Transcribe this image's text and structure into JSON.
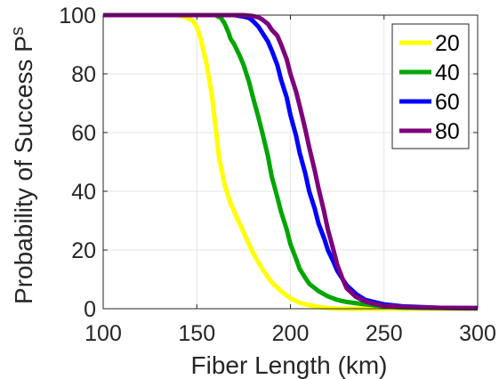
{
  "chart_data": {
    "type": "line",
    "title": "",
    "xlabel": "Fiber Length (km)",
    "ylabel_main": "Probability of Success P",
    "ylabel_subscript": "s",
    "xlim": [
      100,
      300
    ],
    "ylim": [
      0,
      100
    ],
    "x_ticks": [
      100,
      150,
      200,
      250,
      300
    ],
    "y_ticks": [
      0,
      20,
      40,
      60,
      80,
      100
    ],
    "grid": true,
    "legend_position": "top-right",
    "series": [
      {
        "name": "20",
        "color": "#ffff00",
        "x": [
          100,
          140,
          145,
          148,
          150,
          152,
          155,
          158,
          160,
          162,
          165,
          168,
          170,
          175,
          180,
          185,
          190,
          195,
          200,
          205,
          210,
          215,
          220,
          225,
          230,
          240,
          250,
          260,
          270,
          280,
          290,
          300
        ],
        "y": [
          100,
          100,
          99,
          98,
          96,
          92,
          84,
          73,
          62,
          51,
          42,
          36,
          33,
          26,
          19,
          13.5,
          9,
          6,
          3.5,
          2,
          1.2,
          0.6,
          0.2,
          0.05,
          0,
          0,
          0,
          0,
          0,
          0,
          0,
          0
        ]
      },
      {
        "name": "40",
        "color": "#00a600",
        "x": [
          100,
          160,
          163,
          165,
          167,
          168,
          170,
          173,
          175,
          178,
          180,
          183,
          185,
          188,
          190,
          193,
          195,
          198,
          200,
          203,
          205,
          208,
          210,
          215,
          220,
          225,
          230,
          240,
          250,
          260,
          280,
          300
        ],
        "y": [
          100,
          100,
          99,
          97,
          94,
          92,
          90,
          86,
          83,
          77,
          72,
          65,
          60,
          52,
          45,
          38,
          33,
          27,
          22,
          17,
          13.5,
          10.5,
          8.5,
          6,
          4.2,
          3,
          2.3,
          1.5,
          0.8,
          0.4,
          0.2,
          0.1
        ]
      },
      {
        "name": "60",
        "color": "#0000ff",
        "x": [
          100,
          170,
          175,
          178,
          180,
          183,
          185,
          188,
          190,
          193,
          195,
          198,
          200,
          203,
          205,
          208,
          210,
          213,
          215,
          218,
          220,
          223,
          225,
          228,
          230,
          235,
          240,
          245,
          250,
          260,
          280,
          300
        ],
        "y": [
          100,
          100,
          99.5,
          99,
          98,
          96,
          94,
          91,
          88,
          83,
          78,
          72,
          66,
          59,
          53,
          46,
          40,
          34,
          29,
          24,
          20,
          16,
          13,
          10,
          8,
          5,
          3,
          2.2,
          1.5,
          0.8,
          0.3,
          0.2
        ]
      },
      {
        "name": "80",
        "color": "#7d007d",
        "x": [
          100,
          175,
          180,
          183,
          185,
          188,
          190,
          193,
          195,
          198,
          200,
          203,
          205,
          208,
          210,
          213,
          215,
          218,
          220,
          223,
          225,
          228,
          230,
          235,
          240,
          245,
          250,
          260,
          270,
          280,
          290,
          300
        ],
        "y": [
          100,
          100,
          99.7,
          99.2,
          98.5,
          97,
          95,
          93,
          90,
          85,
          80,
          74,
          69,
          61,
          55,
          47,
          41,
          33,
          27,
          20,
          15,
          10,
          7,
          4,
          2.5,
          1.6,
          1,
          0.6,
          0.4,
          0.3,
          0.25,
          0.2
        ]
      }
    ]
  }
}
